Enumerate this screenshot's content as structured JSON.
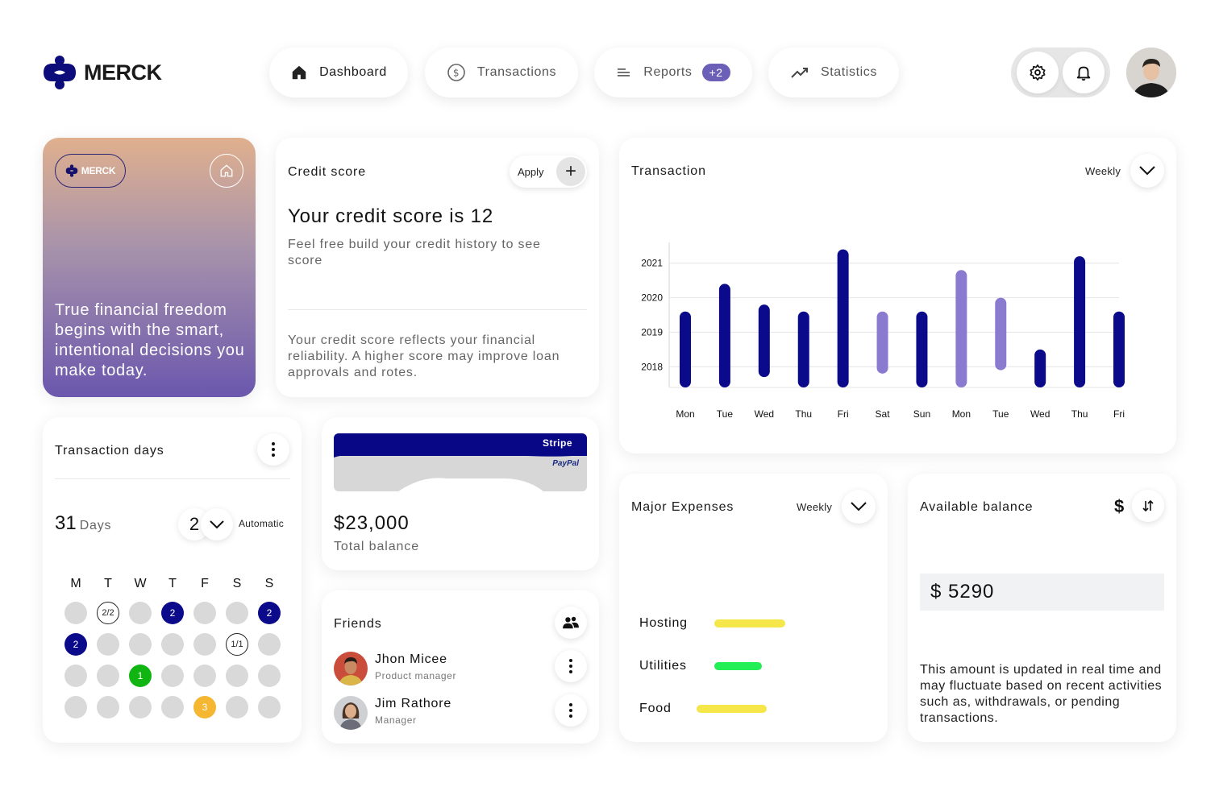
{
  "brand": {
    "name": "MERCK"
  },
  "nav": {
    "dashboard": "Dashboard",
    "transactions": "Transactions",
    "reports": "Reports",
    "reports_badge": "+2",
    "statistics": "Statistics"
  },
  "hero": {
    "logo_text": "MERCK",
    "text": "True financial freedom begins with the smart, intentional decisions you make today."
  },
  "credit": {
    "title": "Credit score",
    "apply_label": "Apply",
    "apply_icon": "+",
    "headline": "Your credit score is 12",
    "subtitle": "Feel free build your credit history to see score",
    "footer": "Your credit score reflects your financial reliability. A higher score may improve loan approvals and rotes."
  },
  "transaction_chart": {
    "title": "Transaction",
    "period": "Weekly"
  },
  "chart_data": {
    "type": "bar",
    "title": "Transaction",
    "categories": [
      "Mon",
      "Tue",
      "Wed",
      "Thu",
      "Fri",
      "Sat",
      "Sun",
      "Mon",
      "Tue",
      "Wed",
      "Thu",
      "Fri"
    ],
    "y_ticks": [
      "2018",
      "2019",
      "2020",
      "2021"
    ],
    "ranges": [
      {
        "low": 2017.4,
        "high": 2019.6,
        "color": "#0a0a8a"
      },
      {
        "low": 2017.4,
        "high": 2020.4,
        "color": "#0a0a8a"
      },
      {
        "low": 2017.7,
        "high": 2019.8,
        "color": "#0a0a8a"
      },
      {
        "low": 2017.4,
        "high": 2019.6,
        "color": "#0a0a8a"
      },
      {
        "low": 2017.4,
        "high": 2021.4,
        "color": "#0a0a8a"
      },
      {
        "low": 2017.8,
        "high": 2019.6,
        "color": "#8b7bd0"
      },
      {
        "low": 2017.4,
        "high": 2019.6,
        "color": "#0a0a8a"
      },
      {
        "low": 2017.4,
        "high": 2020.8,
        "color": "#8b7bd0"
      },
      {
        "low": 2017.9,
        "high": 2020.0,
        "color": "#8b7bd0"
      },
      {
        "low": 2017.4,
        "high": 2018.5,
        "color": "#0a0a8a"
      },
      {
        "low": 2017.4,
        "high": 2021.2,
        "color": "#0a0a8a"
      },
      {
        "low": 2017.4,
        "high": 2019.6,
        "color": "#0a0a8a"
      }
    ],
    "ylim": [
      2017.4,
      2021.6
    ],
    "grid": true
  },
  "transaction_days": {
    "title": "Transaction days",
    "count": "31",
    "count_unit": "Days",
    "stepper_value": "2",
    "mode_label": "Automatic",
    "weekdays": [
      "M",
      "T",
      "W",
      "T",
      "F",
      "S",
      "S"
    ],
    "cells": [
      [
        {
          "t": "",
          "s": "empty"
        },
        {
          "t": "2/2",
          "s": "outline"
        },
        {
          "t": "",
          "s": "empty"
        },
        {
          "t": "2",
          "s": "navy"
        },
        {
          "t": "",
          "s": "empty"
        },
        {
          "t": "",
          "s": "empty"
        },
        {
          "t": "2",
          "s": "navy"
        }
      ],
      [
        {
          "t": "2",
          "s": "navy"
        },
        {
          "t": "",
          "s": "empty"
        },
        {
          "t": "",
          "s": "empty"
        },
        {
          "t": "",
          "s": "empty"
        },
        {
          "t": "",
          "s": "empty"
        },
        {
          "t": "1/1",
          "s": "outline"
        },
        {
          "t": "",
          "s": "empty"
        }
      ],
      [
        {
          "t": "",
          "s": "empty"
        },
        {
          "t": "",
          "s": "empty"
        },
        {
          "t": "1",
          "s": "green"
        },
        {
          "t": "",
          "s": "empty"
        },
        {
          "t": "",
          "s": "empty"
        },
        {
          "t": "",
          "s": "empty"
        },
        {
          "t": "",
          "s": "empty"
        }
      ],
      [
        {
          "t": "",
          "s": "empty"
        },
        {
          "t": "",
          "s": "empty"
        },
        {
          "t": "",
          "s": "empty"
        },
        {
          "t": "",
          "s": "empty"
        },
        {
          "t": "3",
          "s": "orange"
        },
        {
          "t": "",
          "s": "empty"
        },
        {
          "t": "",
          "s": "empty"
        }
      ]
    ]
  },
  "balance": {
    "card_top_label": "Stripe",
    "card_bottom_label": "PayPal",
    "amount": "$23,000",
    "label": "Total balance"
  },
  "friends": {
    "title": "Friends",
    "list": [
      {
        "name": "Jhon Micee",
        "role": "Product manager"
      },
      {
        "name": "Jim Rathore",
        "role": "Manager"
      }
    ]
  },
  "expenses": {
    "title": "Major Expenses",
    "period": "Weekly",
    "items": [
      {
        "label": "Hosting",
        "color": "#f5e64a"
      },
      {
        "label": "Utilities",
        "color": "#22ee55"
      },
      {
        "label": "Food",
        "color": "#f5e64a"
      }
    ]
  },
  "available": {
    "title": "Available balance",
    "currency_symbol": "$",
    "value": "$ 5290",
    "note": "This amount is updated in real time and may fluctuate based on recent activities such as, withdrawals, or pending transactions."
  }
}
